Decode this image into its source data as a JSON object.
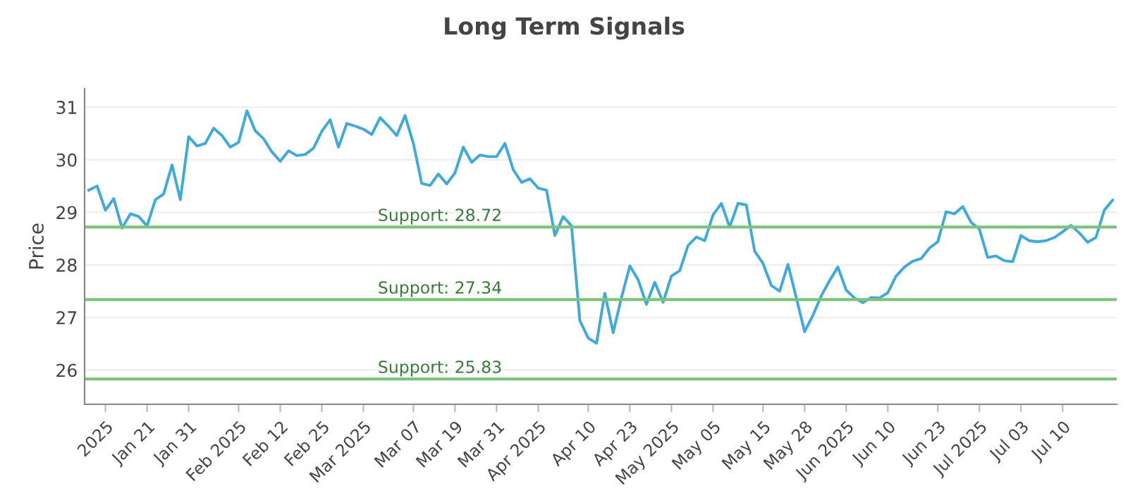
{
  "chart_data": {
    "type": "line",
    "title": "Long Term Signals",
    "ylabel": "Price",
    "categories": [
      null,
      null,
      "2025",
      null,
      null,
      null,
      null,
      "Jan 21",
      null,
      null,
      null,
      null,
      "Jan 31",
      null,
      null,
      null,
      null,
      null,
      "Feb 2025",
      null,
      null,
      null,
      null,
      "Feb 12",
      null,
      null,
      null,
      null,
      "Feb 25",
      null,
      null,
      null,
      null,
      "Mar 2025",
      null,
      null,
      null,
      null,
      null,
      "Mar 07",
      null,
      null,
      null,
      null,
      "Mar 19",
      null,
      null,
      null,
      null,
      "Mar 31",
      null,
      null,
      null,
      null,
      "Apr 2025",
      null,
      null,
      null,
      null,
      null,
      "Apr 10",
      null,
      null,
      null,
      null,
      "Apr 23",
      null,
      null,
      null,
      null,
      "May 2025",
      null,
      null,
      null,
      null,
      "May 05",
      null,
      null,
      null,
      null,
      null,
      "May 15",
      null,
      null,
      null,
      null,
      "May 28",
      null,
      null,
      null,
      null,
      "Jun 2025",
      null,
      null,
      null,
      null,
      "Jun 10",
      null,
      null,
      null,
      null,
      null,
      "Jun 23",
      null,
      null,
      null,
      null,
      "Jul 2025",
      null,
      null,
      null,
      null,
      "Jul 03",
      null,
      null,
      null,
      null,
      "Jul 10",
      null,
      null,
      null,
      null,
      null,
      null
    ],
    "series": [
      {
        "color": "#3fa9dc",
        "values": [
          29.42,
          29.5,
          29.04,
          29.26,
          28.7,
          28.97,
          28.92,
          28.74,
          29.24,
          29.35,
          29.9,
          29.24,
          30.44,
          30.26,
          30.31,
          30.6,
          30.46,
          30.24,
          30.33,
          30.93,
          30.55,
          30.4,
          30.15,
          29.97,
          30.17,
          30.08,
          30.1,
          30.22,
          30.54,
          30.76,
          30.24,
          30.69,
          30.64,
          30.58,
          30.48,
          30.8,
          30.64,
          30.46,
          30.84,
          30.31,
          29.55,
          29.51,
          29.73,
          29.54,
          29.75,
          30.24,
          29.95,
          30.09,
          30.06,
          30.06,
          30.31,
          29.81,
          29.57,
          29.64,
          29.46,
          29.42,
          28.56,
          28.92,
          28.74,
          26.94,
          26.61,
          26.51,
          27.46,
          26.71,
          27.38,
          27.98,
          27.72,
          27.25,
          27.67,
          27.29,
          27.79,
          27.89,
          28.37,
          28.53,
          28.46,
          28.95,
          29.17,
          28.72,
          29.17,
          29.14,
          28.26,
          28.03,
          27.61,
          27.5,
          28.01,
          27.38,
          26.73,
          27.04,
          27.41,
          27.7,
          27.96,
          27.52,
          27.37,
          27.28,
          27.38,
          27.37,
          27.47,
          27.79,
          27.96,
          28.07,
          28.12,
          28.32,
          28.44,
          29.01,
          28.97,
          29.11,
          28.81,
          28.68,
          28.14,
          28.17,
          28.08,
          28.06,
          28.56,
          28.46,
          28.44,
          28.46,
          28.52,
          28.63,
          28.75,
          28.61,
          28.43,
          28.52,
          29.04,
          29.23
        ]
      }
    ],
    "ylim": [
      25.35,
      31.35
    ],
    "yticks": [
      26,
      27,
      28,
      29,
      30,
      31
    ],
    "grid": "y",
    "legend": false,
    "marker": "none",
    "line_style": "solid",
    "ref_lines": [
      {
        "axis": "y",
        "value": 28.72,
        "label": "Support: 28.72",
        "color": "#7cc47c"
      },
      {
        "axis": "y",
        "value": 27.34,
        "label": "Support: 27.34",
        "color": "#7cc47c"
      },
      {
        "axis": "y",
        "value": 25.83,
        "label": "Support: 25.83",
        "color": "#7cc47c"
      }
    ]
  }
}
